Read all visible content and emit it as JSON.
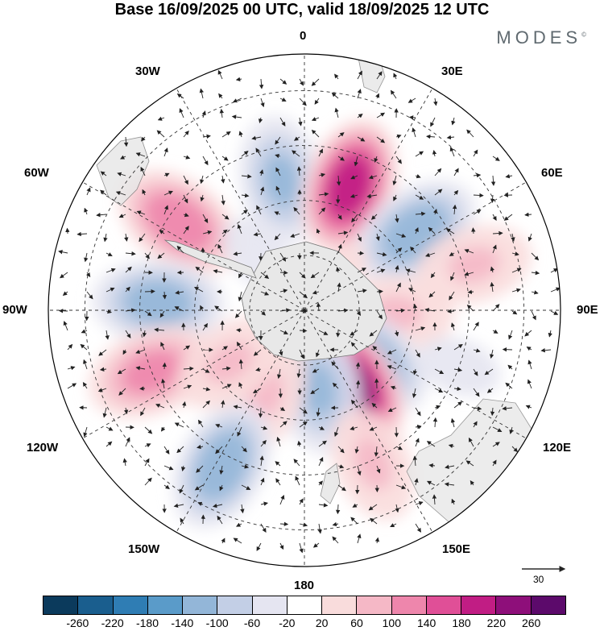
{
  "title": "Base 16/09/2025 00 UTC, valid 18/09/2025 12 UTC",
  "brand": "MODES",
  "brand_mark": "©",
  "longitude_labels": {
    "lon_0": "0",
    "lon_30e": "30E",
    "lon_60e": "60E",
    "lon_90e": "90E",
    "lon_120e": "120E",
    "lon_150e": "150E",
    "lon_180": "180",
    "lon_150w": "150W",
    "lon_120w": "120W",
    "lon_90w": "90W",
    "lon_60w": "60W",
    "lon_30w": "30W"
  },
  "reference_vector": {
    "label": "30"
  },
  "colorbar": {
    "colors": [
      "#0b3a5c",
      "#1a5e8e",
      "#2f7db4",
      "#5a9bc9",
      "#93b6d8",
      "#c3cfe6",
      "#e5e5f1",
      "#ffffff",
      "#f9dcdc",
      "#f5b8c6",
      "#ee86ac",
      "#e04f97",
      "#c11d84",
      "#8e0f7a",
      "#5c0a6b"
    ],
    "ticks": [
      "-260",
      "-220",
      "-180",
      "-140",
      "-100",
      "-60",
      "-20",
      "20",
      "60",
      "100",
      "140",
      "180",
      "220",
      "260"
    ]
  },
  "anomaly_centers": [
    {
      "lon": -10,
      "colat": 36,
      "value": -100
    },
    {
      "lon": 20,
      "colat": 36,
      "value": 200
    },
    {
      "lon": 55,
      "colat": 37,
      "value": -130
    },
    {
      "lon": -55,
      "colat": 42,
      "value": 130
    },
    {
      "lon": -87,
      "colat": 40,
      "value": -120
    },
    {
      "lon": 92,
      "colat": 25,
      "value": 60
    },
    {
      "lon": 75,
      "colat": 48,
      "value": 60
    },
    {
      "lon": 128,
      "colat": 22,
      "value": -140
    },
    {
      "lon": 148,
      "colat": 24,
      "value": 240
    },
    {
      "lon": 170,
      "colat": 22,
      "value": -100
    },
    {
      "lon": -155,
      "colat": 26,
      "value": 60
    },
    {
      "lon": -112,
      "colat": 45,
      "value": 110
    },
    {
      "lon": -152,
      "colat": 48,
      "value": -130
    },
    {
      "lon": 156,
      "colat": 46,
      "value": 60
    },
    {
      "lon": -125,
      "colat": 25,
      "value": 60
    },
    {
      "lon": -40,
      "colat": 20,
      "value": -30
    },
    {
      "lon": 110,
      "colat": 45,
      "value": -30
    },
    {
      "lon": 45,
      "colat": 16,
      "value": 20
    }
  ]
}
